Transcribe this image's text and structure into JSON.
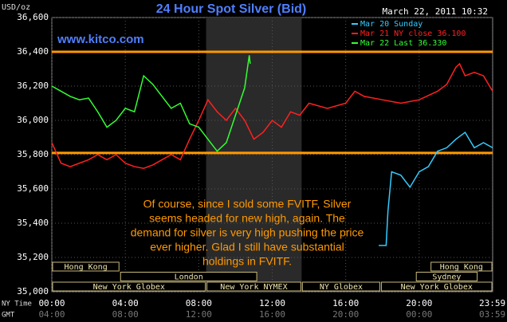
{
  "chart_data": {
    "type": "line",
    "title": "24 Hour Spot Silver (Bid)",
    "y_label": "USD/oz",
    "timestamp": "March 22, 2011 10:32",
    "watermark": "www.kitco.com",
    "x_row_labels": [
      "NY Time",
      "GMT"
    ],
    "xlim": [
      0,
      24
    ],
    "xticks": [
      {
        "value": 0,
        "label": "00:00"
      },
      {
        "value": 4,
        "label": "04:00"
      },
      {
        "value": 8,
        "label": "08:00"
      },
      {
        "value": 12,
        "label": "12:00"
      },
      {
        "value": 16,
        "label": "16:00"
      },
      {
        "value": 20,
        "label": "20:00"
      },
      {
        "value": 23.98,
        "label": "23:59"
      }
    ],
    "gmt_ticks": [
      {
        "value": 0,
        "label": "04:00"
      },
      {
        "value": 4,
        "label": "08:00"
      },
      {
        "value": 8,
        "label": "12:00"
      },
      {
        "value": 12,
        "label": "16:00"
      },
      {
        "value": 16,
        "label": "20:00"
      },
      {
        "value": 20,
        "label": "00:00"
      },
      {
        "value": 23.98,
        "label": "03:59"
      }
    ],
    "ylim": [
      35.0,
      36.6
    ],
    "yticks": [
      {
        "value": 35.0,
        "label": "35,000"
      },
      {
        "value": 35.2,
        "label": "35,200"
      },
      {
        "value": 35.4,
        "label": "35,400"
      },
      {
        "value": 35.6,
        "label": "35,600"
      },
      {
        "value": 35.8,
        "label": "35,800"
      },
      {
        "value": 36.0,
        "label": "36,000"
      },
      {
        "value": 36.2,
        "label": "36,200"
      },
      {
        "value": 36.4,
        "label": "36,400"
      },
      {
        "value": 36.6,
        "label": "36,600"
      }
    ],
    "grid": true,
    "reference_lines": [
      36.4,
      35.81
    ],
    "reference_color": "#ff9900",
    "shaded_range": [
      8.4,
      13.6
    ],
    "sessions": [
      {
        "label": "Hong Kong",
        "start": 0,
        "end": 3.7,
        "row": 0
      },
      {
        "label": "London",
        "start": 3.7,
        "end": 11.2,
        "row": 1
      },
      {
        "label": "New York Globex",
        "start": 0,
        "end": 8.4,
        "row": 2
      },
      {
        "label": "New York NYMEX",
        "start": 8.4,
        "end": 13.6,
        "row": 2
      },
      {
        "label": "NY Globex",
        "start": 13.6,
        "end": 17.9,
        "row": 2
      },
      {
        "label": "New York Globex",
        "start": 17.9,
        "end": 24,
        "row": 2
      },
      {
        "label": "Sydney",
        "start": 19.8,
        "end": 23.2,
        "row": 1
      },
      {
        "label": "Hong Kong",
        "start": 20.6,
        "end": 24,
        "row": 0
      }
    ],
    "annotation": [
      "Of course, since I sold some FVITF, Silver",
      "seems headed for new high, again. The",
      "demand for silver is very high pushing the price",
      "ever higher.  Glad I still have substantial",
      "holdings in FVITF."
    ],
    "series": [
      {
        "name": "Mar 20 Sunday",
        "color": "#33ccff",
        "x": [
          17.8,
          18.2,
          18.3,
          18.5,
          19,
          19.5,
          20,
          20.5,
          21,
          21.5,
          22,
          22.5,
          23,
          23.5,
          24
        ],
        "values": [
          35.27,
          35.27,
          35.47,
          35.7,
          35.68,
          35.61,
          35.7,
          35.73,
          35.82,
          35.84,
          35.89,
          35.93,
          35.84,
          35.87,
          35.84
        ]
      },
      {
        "name": "Mar 21 NY close 36.100",
        "color": "#ff2020",
        "x": [
          0,
          0.5,
          1,
          1.5,
          2,
          2.5,
          3,
          3.5,
          4,
          4.5,
          5,
          5.5,
          6,
          6.5,
          7,
          7.5,
          8,
          8.5,
          9,
          9.5,
          10,
          10.5,
          11,
          11.5,
          12,
          12.5,
          13,
          13.5,
          14,
          15,
          16,
          16.5,
          17,
          18,
          19,
          20,
          21,
          21.5,
          22,
          22.2,
          22.5,
          23,
          23.5,
          24
        ],
        "values": [
          35.87,
          35.75,
          35.73,
          35.75,
          35.77,
          35.8,
          35.77,
          35.8,
          35.75,
          35.73,
          35.72,
          35.74,
          35.77,
          35.8,
          35.77,
          35.89,
          36.0,
          36.12,
          36.05,
          36.0,
          36.07,
          36.0,
          35.89,
          35.93,
          36.0,
          35.96,
          36.05,
          36.03,
          36.1,
          36.07,
          36.1,
          36.17,
          36.14,
          36.12,
          36.1,
          36.12,
          36.17,
          36.21,
          36.31,
          36.33,
          36.26,
          36.28,
          36.26,
          36.17
        ]
      },
      {
        "name": "Mar 22 Last 36.330",
        "color": "#33ff33",
        "x": [
          0,
          0.5,
          1,
          1.5,
          2,
          2.5,
          3,
          3.5,
          4,
          4.5,
          5,
          5.5,
          6,
          6.5,
          7,
          7.5,
          8,
          8.5,
          9,
          9.5,
          10,
          10.5,
          10.75,
          10.8
        ],
        "values": [
          36.2,
          36.17,
          36.14,
          36.12,
          36.13,
          36.05,
          35.96,
          36.0,
          36.07,
          36.05,
          36.26,
          36.21,
          36.14,
          36.07,
          36.1,
          35.98,
          35.96,
          35.89,
          35.82,
          35.87,
          36.03,
          36.19,
          36.38,
          36.33
        ]
      }
    ]
  }
}
